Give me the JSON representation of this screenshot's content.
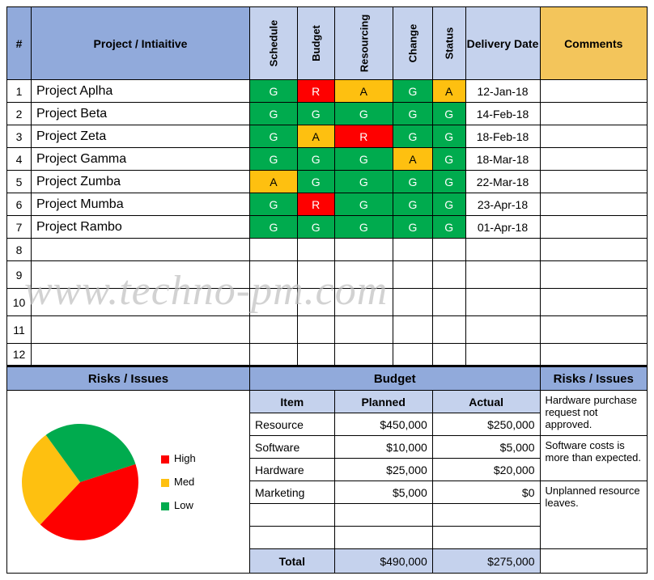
{
  "headers": {
    "num": "#",
    "project": "Project / Intiaitive",
    "schedule": "Schedule",
    "budget": "Budget",
    "resourcing": "Resourcing",
    "change": "Change",
    "status": "Status",
    "delivery": "Delivery Date",
    "comments": "Comments"
  },
  "rows": [
    {
      "num": "1",
      "name": "Project Aplha",
      "s": "G",
      "b": "R",
      "r": "A",
      "c": "G",
      "st": "A",
      "date": "12-Jan-18",
      "comments": ""
    },
    {
      "num": "2",
      "name": "Project Beta",
      "s": "G",
      "b": "G",
      "r": "G",
      "c": "G",
      "st": "G",
      "date": "14-Feb-18",
      "comments": ""
    },
    {
      "num": "3",
      "name": "Project Zeta",
      "s": "G",
      "b": "A",
      "r": "R",
      "c": "G",
      "st": "G",
      "date": "18-Feb-18",
      "comments": ""
    },
    {
      "num": "4",
      "name": "Project Gamma",
      "s": "G",
      "b": "G",
      "r": "G",
      "c": "A",
      "st": "G",
      "date": "18-Mar-18",
      "comments": ""
    },
    {
      "num": "5",
      "name": "Project Zumba",
      "s": "A",
      "b": "G",
      "r": "G",
      "c": "G",
      "st": "G",
      "date": "22-Mar-18",
      "comments": ""
    },
    {
      "num": "6",
      "name": "Project Mumba",
      "s": "G",
      "b": "R",
      "r": "G",
      "c": "G",
      "st": "G",
      "date": "23-Apr-18",
      "comments": ""
    },
    {
      "num": "7",
      "name": "Project Rambo",
      "s": "G",
      "b": "G",
      "r": "G",
      "c": "G",
      "st": "G",
      "date": "01-Apr-18",
      "comments": ""
    }
  ],
  "empty": [
    "8",
    "9",
    "10",
    "11",
    "12"
  ],
  "empty_heights": {
    "8": 28,
    "9": 34,
    "10": 34,
    "11": 34,
    "12": 28
  },
  "sections": {
    "risks_left": "Risks / Issues",
    "budget": "Budget",
    "risks_right": "Risks / Issues"
  },
  "budget": {
    "cols": {
      "item": "Item",
      "planned": "Planned",
      "actual": "Actual"
    },
    "items": [
      {
        "item": "Resource",
        "planned": "$450,000",
        "actual": "$250,000"
      },
      {
        "item": "Software",
        "planned": "$10,000",
        "actual": "$5,000"
      },
      {
        "item": "Hardware",
        "planned": "$25,000",
        "actual": "$20,000"
      },
      {
        "item": "Marketing",
        "planned": "$5,000",
        "actual": "$0"
      }
    ],
    "total_label": "Total",
    "total_planned": "$490,000",
    "total_actual": "$275,000"
  },
  "issues": [
    "Hardware purchase request not approved.",
    "Software costs is more than expected.",
    "Unplanned resource leaves."
  ],
  "pie": {
    "type": "pie",
    "slices": [
      {
        "label": "High",
        "color": "#fe0000",
        "pct": 42
      },
      {
        "label": "Med",
        "color": "#fec010",
        "pct": 28
      },
      {
        "label": "Low",
        "color": "#00ab4e",
        "pct": 30
      }
    ],
    "start_angle": -18,
    "radius": 72
  },
  "colors": {
    "G": {
      "bg": "#00ab4e",
      "fg": "#ffffff"
    },
    "A": {
      "bg": "#fec010",
      "fg": "#000000"
    },
    "R": {
      "bg": "#fe0000",
      "fg": "#ffffff"
    },
    "header_blue": "#91aadb",
    "header_lightblue": "#c5d2ed",
    "header_yellow": "#f3c55b",
    "border": "#000000"
  },
  "watermark": "www.techno-pm.com"
}
